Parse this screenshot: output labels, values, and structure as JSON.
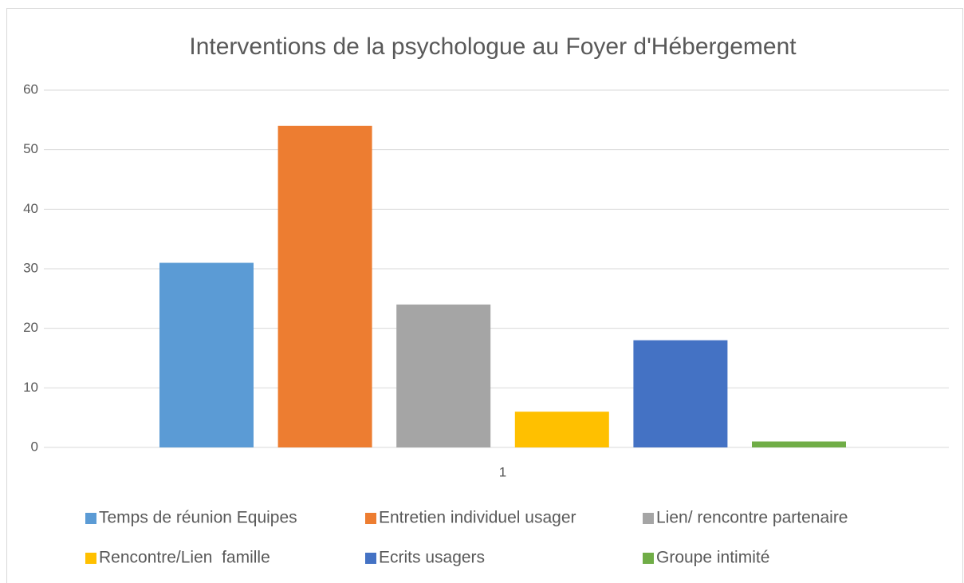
{
  "chart_data": {
    "type": "bar",
    "title": "Interventions de la psychologue au Foyer d'Hébergement",
    "categories": [
      "1"
    ],
    "series": [
      {
        "name": "Temps de réunion Equipes",
        "color": "#5b9bd5",
        "values": [
          31
        ]
      },
      {
        "name": "Entretien individuel usager",
        "color": "#ed7d31",
        "values": [
          54
        ]
      },
      {
        "name": "Lien/ rencontre partenaire",
        "color": "#a5a5a5",
        "values": [
          24
        ]
      },
      {
        "name": "Rencontre/Lien  famille",
        "color": "#ffc000",
        "values": [
          6
        ]
      },
      {
        "name": "Ecrits usagers",
        "color": "#4472c4",
        "values": [
          18
        ]
      },
      {
        "name": "Groupe intimité",
        "color": "#70ad47",
        "values": [
          1
        ]
      }
    ],
    "ylim": [
      0,
      60
    ],
    "yticks": [
      0,
      10,
      20,
      30,
      40,
      50,
      60
    ],
    "grid": true,
    "legend": "bottom"
  }
}
